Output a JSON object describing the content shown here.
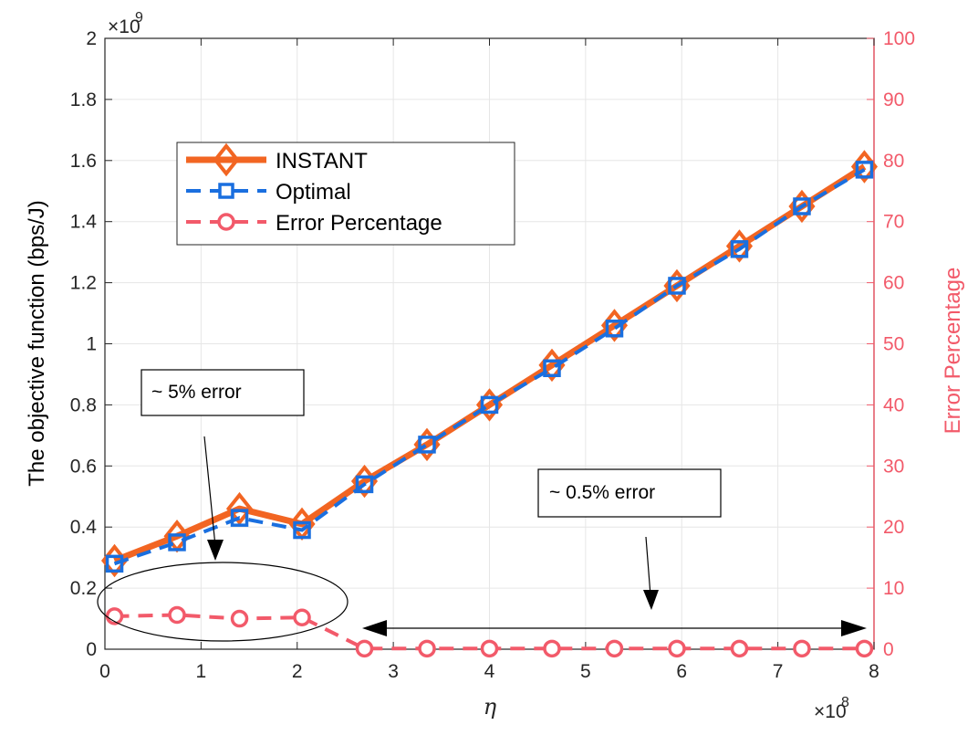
{
  "chart_data": {
    "type": "line",
    "xlabel": "η",
    "ylabel": "The objective function (bps/J)",
    "ylabel_right": "Error Percentage",
    "x_multiplier": "×10",
    "x_multiplier_exp": "8",
    "y_multiplier": "×10",
    "y_multiplier_exp": "9",
    "xlim": [
      0,
      8
    ],
    "ylim": [
      0,
      2
    ],
    "ylim_right": [
      0,
      100
    ],
    "x_ticks": [
      "0",
      "1",
      "2",
      "3",
      "4",
      "5",
      "6",
      "7",
      "8"
    ],
    "y_ticks": [
      "0",
      "0.2",
      "0.4",
      "0.6",
      "0.8",
      "1",
      "1.2",
      "1.4",
      "1.6",
      "1.8",
      "2"
    ],
    "y_ticks_right": [
      "0",
      "10",
      "20",
      "30",
      "40",
      "50",
      "60",
      "70",
      "80",
      "90",
      "100"
    ],
    "grid": true,
    "legend_position": "upper-left",
    "x": [
      0.1,
      0.75,
      1.4,
      2.05,
      2.7,
      3.35,
      4.0,
      4.65,
      5.3,
      5.95,
      6.6,
      7.25,
      7.9
    ],
    "series": [
      {
        "name": "INSTANT",
        "axis": "left",
        "color": "#f26522",
        "marker": "diamond",
        "values": [
          0.29,
          0.37,
          0.46,
          0.41,
          0.55,
          0.67,
          0.8,
          0.93,
          1.06,
          1.19,
          1.32,
          1.45,
          1.58
        ]
      },
      {
        "name": "Optimal",
        "axis": "left",
        "color": "#1a6fdf",
        "marker": "square",
        "values": [
          0.28,
          0.35,
          0.43,
          0.39,
          0.54,
          0.67,
          0.8,
          0.92,
          1.05,
          1.19,
          1.31,
          1.45,
          1.57
        ]
      },
      {
        "name": "Error Percentage",
        "axis": "right",
        "color": "#f25a6a",
        "marker": "circle",
        "values": [
          5.4,
          5.6,
          5.0,
          5.2,
          0.1,
          0.1,
          0.1,
          0.1,
          0.1,
          0.1,
          0.1,
          0.1,
          0.1
        ]
      }
    ],
    "annotations": [
      {
        "text": "~ 5% error"
      },
      {
        "text": "~ 0.5% error"
      }
    ]
  }
}
